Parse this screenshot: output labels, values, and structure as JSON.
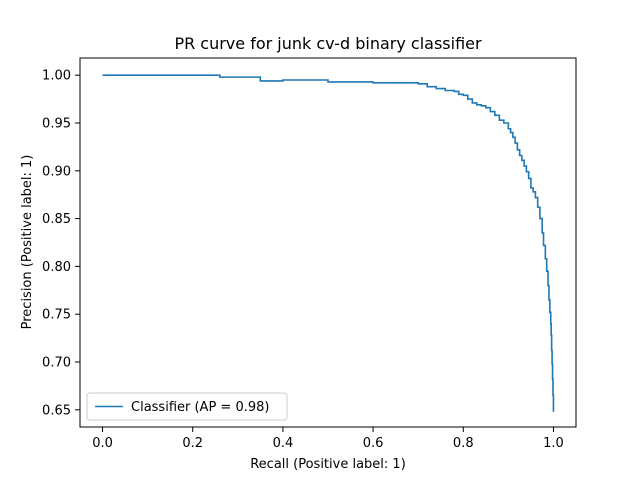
{
  "chart_data": {
    "type": "line",
    "title": "PR curve for junk cv-d binary classifier",
    "xlabel": "Recall (Positive label: 1)",
    "ylabel": "Precision (Positive label: 1)",
    "xlim": [
      -0.05,
      1.05
    ],
    "ylim": [
      0.632,
      1.018
    ],
    "xticks": [
      "0.0",
      "0.2",
      "0.4",
      "0.6",
      "0.8",
      "1.0"
    ],
    "yticks": [
      "0.65",
      "0.70",
      "0.75",
      "0.80",
      "0.85",
      "0.90",
      "0.95",
      "1.00"
    ],
    "grid": false,
    "legend": {
      "position": "lower-left",
      "entries": [
        "Classifier (AP = 0.98)"
      ]
    },
    "series": [
      {
        "name": "Classifier (AP = 0.98)",
        "color": "#1f77b4",
        "step": true,
        "x": [
          0.0,
          0.26,
          0.26,
          0.35,
          0.35,
          0.4,
          0.4,
          0.5,
          0.5,
          0.6,
          0.6,
          0.67,
          0.7,
          0.72,
          0.74,
          0.76,
          0.78,
          0.79,
          0.8,
          0.81,
          0.82,
          0.83,
          0.84,
          0.85,
          0.86,
          0.87,
          0.88,
          0.89,
          0.9,
          0.905,
          0.91,
          0.915,
          0.92,
          0.925,
          0.93,
          0.935,
          0.94,
          0.945,
          0.95,
          0.955,
          0.96,
          0.965,
          0.97,
          0.975,
          0.978,
          0.982,
          0.985,
          0.988,
          0.99,
          0.992,
          0.994,
          0.995,
          0.996,
          0.997,
          0.998,
          0.999,
          1.0
        ],
        "y": [
          1.0,
          1.0,
          0.998,
          0.998,
          0.994,
          0.994,
          0.995,
          0.995,
          0.993,
          0.993,
          0.992,
          0.992,
          0.991,
          0.988,
          0.986,
          0.984,
          0.983,
          0.98,
          0.979,
          0.975,
          0.971,
          0.969,
          0.968,
          0.966,
          0.962,
          0.958,
          0.953,
          0.95,
          0.944,
          0.94,
          0.935,
          0.929,
          0.922,
          0.916,
          0.911,
          0.905,
          0.899,
          0.892,
          0.882,
          0.878,
          0.872,
          0.862,
          0.85,
          0.835,
          0.822,
          0.808,
          0.795,
          0.78,
          0.765,
          0.752,
          0.74,
          0.728,
          0.712,
          0.698,
          0.682,
          0.665,
          0.648
        ]
      }
    ]
  }
}
